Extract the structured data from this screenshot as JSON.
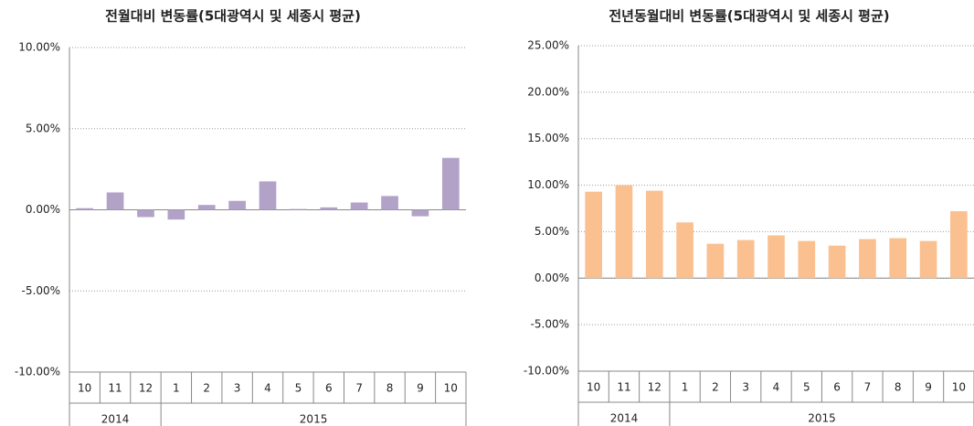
{
  "chart_data": [
    {
      "type": "bar",
      "title": "전월대비 변동률(5대광역시 및 세종시 평균)",
      "color": "#b3a2c7",
      "categories": [
        "10",
        "11",
        "12",
        "1",
        "2",
        "3",
        "4",
        "5",
        "6",
        "7",
        "8",
        "9",
        "10"
      ],
      "groups": [
        {
          "label": "2014",
          "count": 3
        },
        {
          "label": "2015",
          "count": 10
        }
      ],
      "values": [
        0.1,
        1.07,
        -0.45,
        -0.6,
        0.3,
        0.55,
        1.75,
        0.05,
        0.15,
        0.45,
        0.85,
        -0.4,
        3.2
      ],
      "ylim": [
        -10,
        10
      ],
      "yticks": [
        {
          "value": -10,
          "label": "-10.00%"
        },
        {
          "value": -5,
          "label": "-5.00%"
        },
        {
          "value": 0,
          "label": "0.00%"
        },
        {
          "value": 5,
          "label": "5.00%"
        },
        {
          "value": 10,
          "label": "10.00%"
        }
      ],
      "grid": true
    },
    {
      "type": "bar",
      "title": "전년동월대비 변동률(5대광역시 및 세종시 평균)",
      "color": "#fac090",
      "categories": [
        "10",
        "11",
        "12",
        "1",
        "2",
        "3",
        "4",
        "5",
        "6",
        "7",
        "8",
        "9",
        "10"
      ],
      "groups": [
        {
          "label": "2014",
          "count": 3
        },
        {
          "label": "2015",
          "count": 10
        }
      ],
      "values": [
        9.3,
        10.0,
        9.4,
        6.0,
        3.7,
        4.1,
        4.6,
        4.0,
        3.5,
        4.2,
        4.3,
        4.0,
        7.2
      ],
      "ylim": [
        -10,
        25
      ],
      "yticks": [
        {
          "value": -10,
          "label": "-10.00%"
        },
        {
          "value": -5,
          "label": "-5.00%"
        },
        {
          "value": 0,
          "label": "0.00%"
        },
        {
          "value": 5,
          "label": "5.00%"
        },
        {
          "value": 10,
          "label": "10.00%"
        },
        {
          "value": 15,
          "label": "15.00%"
        },
        {
          "value": 20,
          "label": "20.00%"
        },
        {
          "value": 25,
          "label": "25.00%"
        }
      ],
      "grid": true
    }
  ]
}
